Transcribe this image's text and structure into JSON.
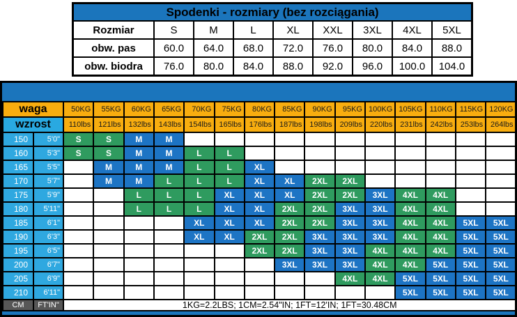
{
  "colors": {
    "panel_blue": "#1b75bc",
    "cell_blue": "#1d74c4",
    "cell_green": "#2f9b5f",
    "header_orange": "#f8ad0f",
    "header_cyan": "#29a9e1",
    "height_cell_cyan": "#2fa8e0",
    "unit_gray": "#575757"
  },
  "chart_data": [
    {
      "type": "table",
      "title": "Spodenki - rozmiary (bez rozciągania)",
      "header_row": [
        "Rozmiar",
        "S",
        "M",
        "L",
        "XL",
        "XXL",
        "3XL",
        "4XL",
        "5XL"
      ],
      "rows": [
        {
          "label": "obw. pas",
          "values": [
            "60.0",
            "64.0",
            "68.0",
            "72.0",
            "76.0",
            "80.0",
            "84.0",
            "88.0"
          ]
        },
        {
          "label": "obw. biodra",
          "values": [
            "76.0",
            "80.0",
            "84.0",
            "88.0",
            "92.0",
            "96.0",
            "100.0",
            "104.0"
          ]
        }
      ]
    },
    {
      "type": "heatmap",
      "row_header_labels": {
        "weight": "waga",
        "height": "wzrost"
      },
      "weights_kg": [
        "50KG",
        "55KG",
        "60KG",
        "65KG",
        "70KG",
        "75KG",
        "80KG",
        "85KG",
        "90KG",
        "95KG",
        "100KG",
        "105KG",
        "110KG",
        "115KG",
        "120KG"
      ],
      "weights_lbs": [
        "110lbs",
        "121lbs",
        "132lbs",
        "143lbs",
        "154lbs",
        "165lbs",
        "176lbs",
        "187lbs",
        "198lbs",
        "209lbs",
        "220lbs",
        "231lbs",
        "242lbs",
        "253lbs",
        "264lbs"
      ],
      "rows": [
        {
          "cm": "150",
          "ftin": "5'0\"",
          "sizes": [
            "S",
            "S",
            "M",
            "M",
            "",
            "",
            "",
            "",
            "",
            "",
            "",
            "",
            "",
            "",
            ""
          ]
        },
        {
          "cm": "160",
          "ftin": "5'3\"",
          "sizes": [
            "S",
            "S",
            "M",
            "M",
            "L",
            "L",
            "",
            "",
            "",
            "",
            "",
            "",
            "",
            "",
            ""
          ]
        },
        {
          "cm": "165",
          "ftin": "5'5\"",
          "sizes": [
            "",
            "M",
            "M",
            "M",
            "L",
            "L",
            "XL",
            "",
            "",
            "",
            "",
            "",
            "",
            "",
            ""
          ]
        },
        {
          "cm": "170",
          "ftin": "5'7\"",
          "sizes": [
            "",
            "M",
            "M",
            "L",
            "L",
            "L",
            "XL",
            "XL",
            "2XL",
            "2XL",
            "",
            "",
            "",
            "",
            ""
          ]
        },
        {
          "cm": "175",
          "ftin": "5'9\"",
          "sizes": [
            "",
            "",
            "L",
            "L",
            "L",
            "XL",
            "XL",
            "XL",
            "2XL",
            "2XL",
            "3XL",
            "4XL",
            "4XL",
            "",
            ""
          ]
        },
        {
          "cm": "180",
          "ftin": "5'11\"",
          "sizes": [
            "",
            "",
            "L",
            "L",
            "L",
            "XL",
            "XL",
            "2XL",
            "2XL",
            "3XL",
            "3XL",
            "4XL",
            "4XL",
            "",
            ""
          ]
        },
        {
          "cm": "185",
          "ftin": "6'1\"",
          "sizes": [
            "",
            "",
            "",
            "",
            "XL",
            "XL",
            "XL",
            "2XL",
            "2XL",
            "3XL",
            "3XL",
            "4XL",
            "4XL",
            "5XL",
            "5XL"
          ]
        },
        {
          "cm": "190",
          "ftin": "6'3\"",
          "sizes": [
            "",
            "",
            "",
            "",
            "XL",
            "XL",
            "2XL",
            "2XL",
            "3XL",
            "3XL",
            "3XL",
            "4XL",
            "4XL",
            "5XL",
            "5XL"
          ]
        },
        {
          "cm": "195",
          "ftin": "6'5\"",
          "sizes": [
            "",
            "",
            "",
            "",
            "",
            "",
            "2XL",
            "2XL",
            "3XL",
            "3XL",
            "4XL",
            "4XL",
            "4XL",
            "5XL",
            "5XL"
          ]
        },
        {
          "cm": "200",
          "ftin": "6'7\"",
          "sizes": [
            "",
            "",
            "",
            "",
            "",
            "",
            "",
            "3XL",
            "3XL",
            "3XL",
            "4XL",
            "4XL",
            "5XL",
            "5XL",
            "5XL"
          ]
        },
        {
          "cm": "205",
          "ftin": "6'9\"",
          "sizes": [
            "",
            "",
            "",
            "",
            "",
            "",
            "",
            "",
            "",
            "4XL",
            "4XL",
            "5XL",
            "5XL",
            "5XL",
            "5XL"
          ]
        },
        {
          "cm": "210",
          "ftin": "6'11\"",
          "sizes": [
            "",
            "",
            "",
            "",
            "",
            "",
            "",
            "",
            "",
            "",
            "",
            "5XL",
            "5XL",
            "5XL",
            "5XL"
          ]
        }
      ],
      "size_colors": {
        "S": "#2f9b5f",
        "M": "#1d74c4",
        "L": "#2f9b5f",
        "XL": "#1d74c4",
        "2XL": "#2f9b5f",
        "3XL": "#1d74c4",
        "4XL": "#2f9b5f",
        "5XL": "#1d74c4"
      },
      "footer": {
        "unit_left": "CM",
        "unit_right": "FT'IN\"",
        "note": "1KG=2.2LBS;  1CM=2.54\"IN;  1FT=12'IN;  1FT=30.48CM"
      }
    }
  ]
}
